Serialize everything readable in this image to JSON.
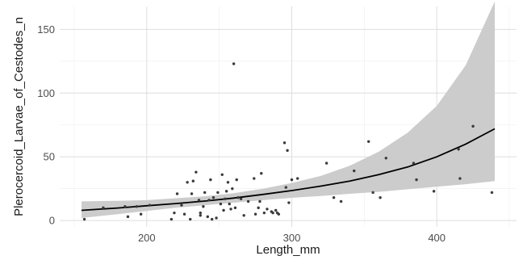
{
  "chart_data": {
    "type": "scatter",
    "xlabel": "Length_mm",
    "ylabel": "Plerocercoid_Larvae_of_Cestodes_n",
    "xlim": [
      140,
      455
    ],
    "ylim": [
      -5,
      168
    ],
    "x_ticks": [
      200,
      300,
      400
    ],
    "y_ticks": [
      0,
      50,
      100,
      150
    ],
    "x_minor_ticks": [
      150,
      250,
      350,
      450
    ],
    "y_minor_ticks": [
      25,
      75,
      125
    ],
    "grid": true,
    "legend": "none",
    "colors": {
      "points": "#3a3a3a",
      "line": "#000000",
      "band": "#cccccc",
      "grid": "#dedede"
    },
    "series": [
      {
        "type": "scatter",
        "points": [
          [
            157,
            1
          ],
          [
            170,
            10
          ],
          [
            185,
            11
          ],
          [
            187,
            3
          ],
          [
            193,
            11
          ],
          [
            196,
            5
          ],
          [
            202,
            12
          ],
          [
            217,
            1
          ],
          [
            219,
            6
          ],
          [
            221,
            21
          ],
          [
            224,
            12
          ],
          [
            226,
            5
          ],
          [
            228,
            30
          ],
          [
            230,
            1
          ],
          [
            231,
            21
          ],
          [
            232,
            31
          ],
          [
            234,
            38
          ],
          [
            236,
            16
          ],
          [
            237,
            4
          ],
          [
            237,
            6
          ],
          [
            239,
            11
          ],
          [
            240,
            22
          ],
          [
            242,
            3
          ],
          [
            243,
            16
          ],
          [
            244,
            32
          ],
          [
            245,
            1
          ],
          [
            246,
            18
          ],
          [
            248,
            2
          ],
          [
            249,
            22
          ],
          [
            251,
            13
          ],
          [
            252,
            36
          ],
          [
            253,
            8
          ],
          [
            254,
            17
          ],
          [
            255,
            23
          ],
          [
            256,
            30
          ],
          [
            257,
            13
          ],
          [
            258,
            9
          ],
          [
            259,
            25
          ],
          [
            260,
            123
          ],
          [
            261,
            10
          ],
          [
            262,
            32
          ],
          [
            263,
            18
          ],
          [
            265,
            17
          ],
          [
            267,
            4
          ],
          [
            270,
            15
          ],
          [
            274,
            33
          ],
          [
            275,
            5
          ],
          [
            277,
            10
          ],
          [
            278,
            15
          ],
          [
            279,
            37
          ],
          [
            281,
            6
          ],
          [
            283,
            9
          ],
          [
            286,
            7
          ],
          [
            287,
            6
          ],
          [
            289,
            8
          ],
          [
            290,
            6
          ],
          [
            291,
            5
          ],
          [
            295,
            61
          ],
          [
            296,
            26
          ],
          [
            297,
            55
          ],
          [
            298,
            14
          ],
          [
            300,
            32
          ],
          [
            304,
            33
          ],
          [
            324,
            45
          ],
          [
            329,
            18
          ],
          [
            334,
            15
          ],
          [
            343,
            39
          ],
          [
            353,
            62
          ],
          [
            356,
            22
          ],
          [
            361,
            18
          ],
          [
            365,
            49
          ],
          [
            384,
            45
          ],
          [
            386,
            32
          ],
          [
            398,
            23
          ],
          [
            415,
            56
          ],
          [
            416,
            33
          ],
          [
            425,
            74
          ],
          [
            438,
            22
          ]
        ]
      },
      {
        "type": "line",
        "x": [
          155,
          180,
          200,
          220,
          240,
          260,
          280,
          300,
          320,
          340,
          360,
          380,
          400,
          420,
          440
        ],
        "y": [
          8,
          9.8,
          11.6,
          13.3,
          15.3,
          17.6,
          20.5,
          23.5,
          27,
          31,
          36,
          42,
          50,
          60,
          72
        ],
        "lower": [
          2,
          5,
          7.5,
          10,
          12,
          14,
          16,
          17.8,
          19.3,
          21,
          22.5,
          24.5,
          26.5,
          28.5,
          31
        ],
        "upper": [
          15,
          15.5,
          16,
          17.5,
          19,
          21.5,
          25,
          29.5,
          35,
          43,
          54,
          69,
          90,
          122,
          172
        ]
      }
    ]
  }
}
